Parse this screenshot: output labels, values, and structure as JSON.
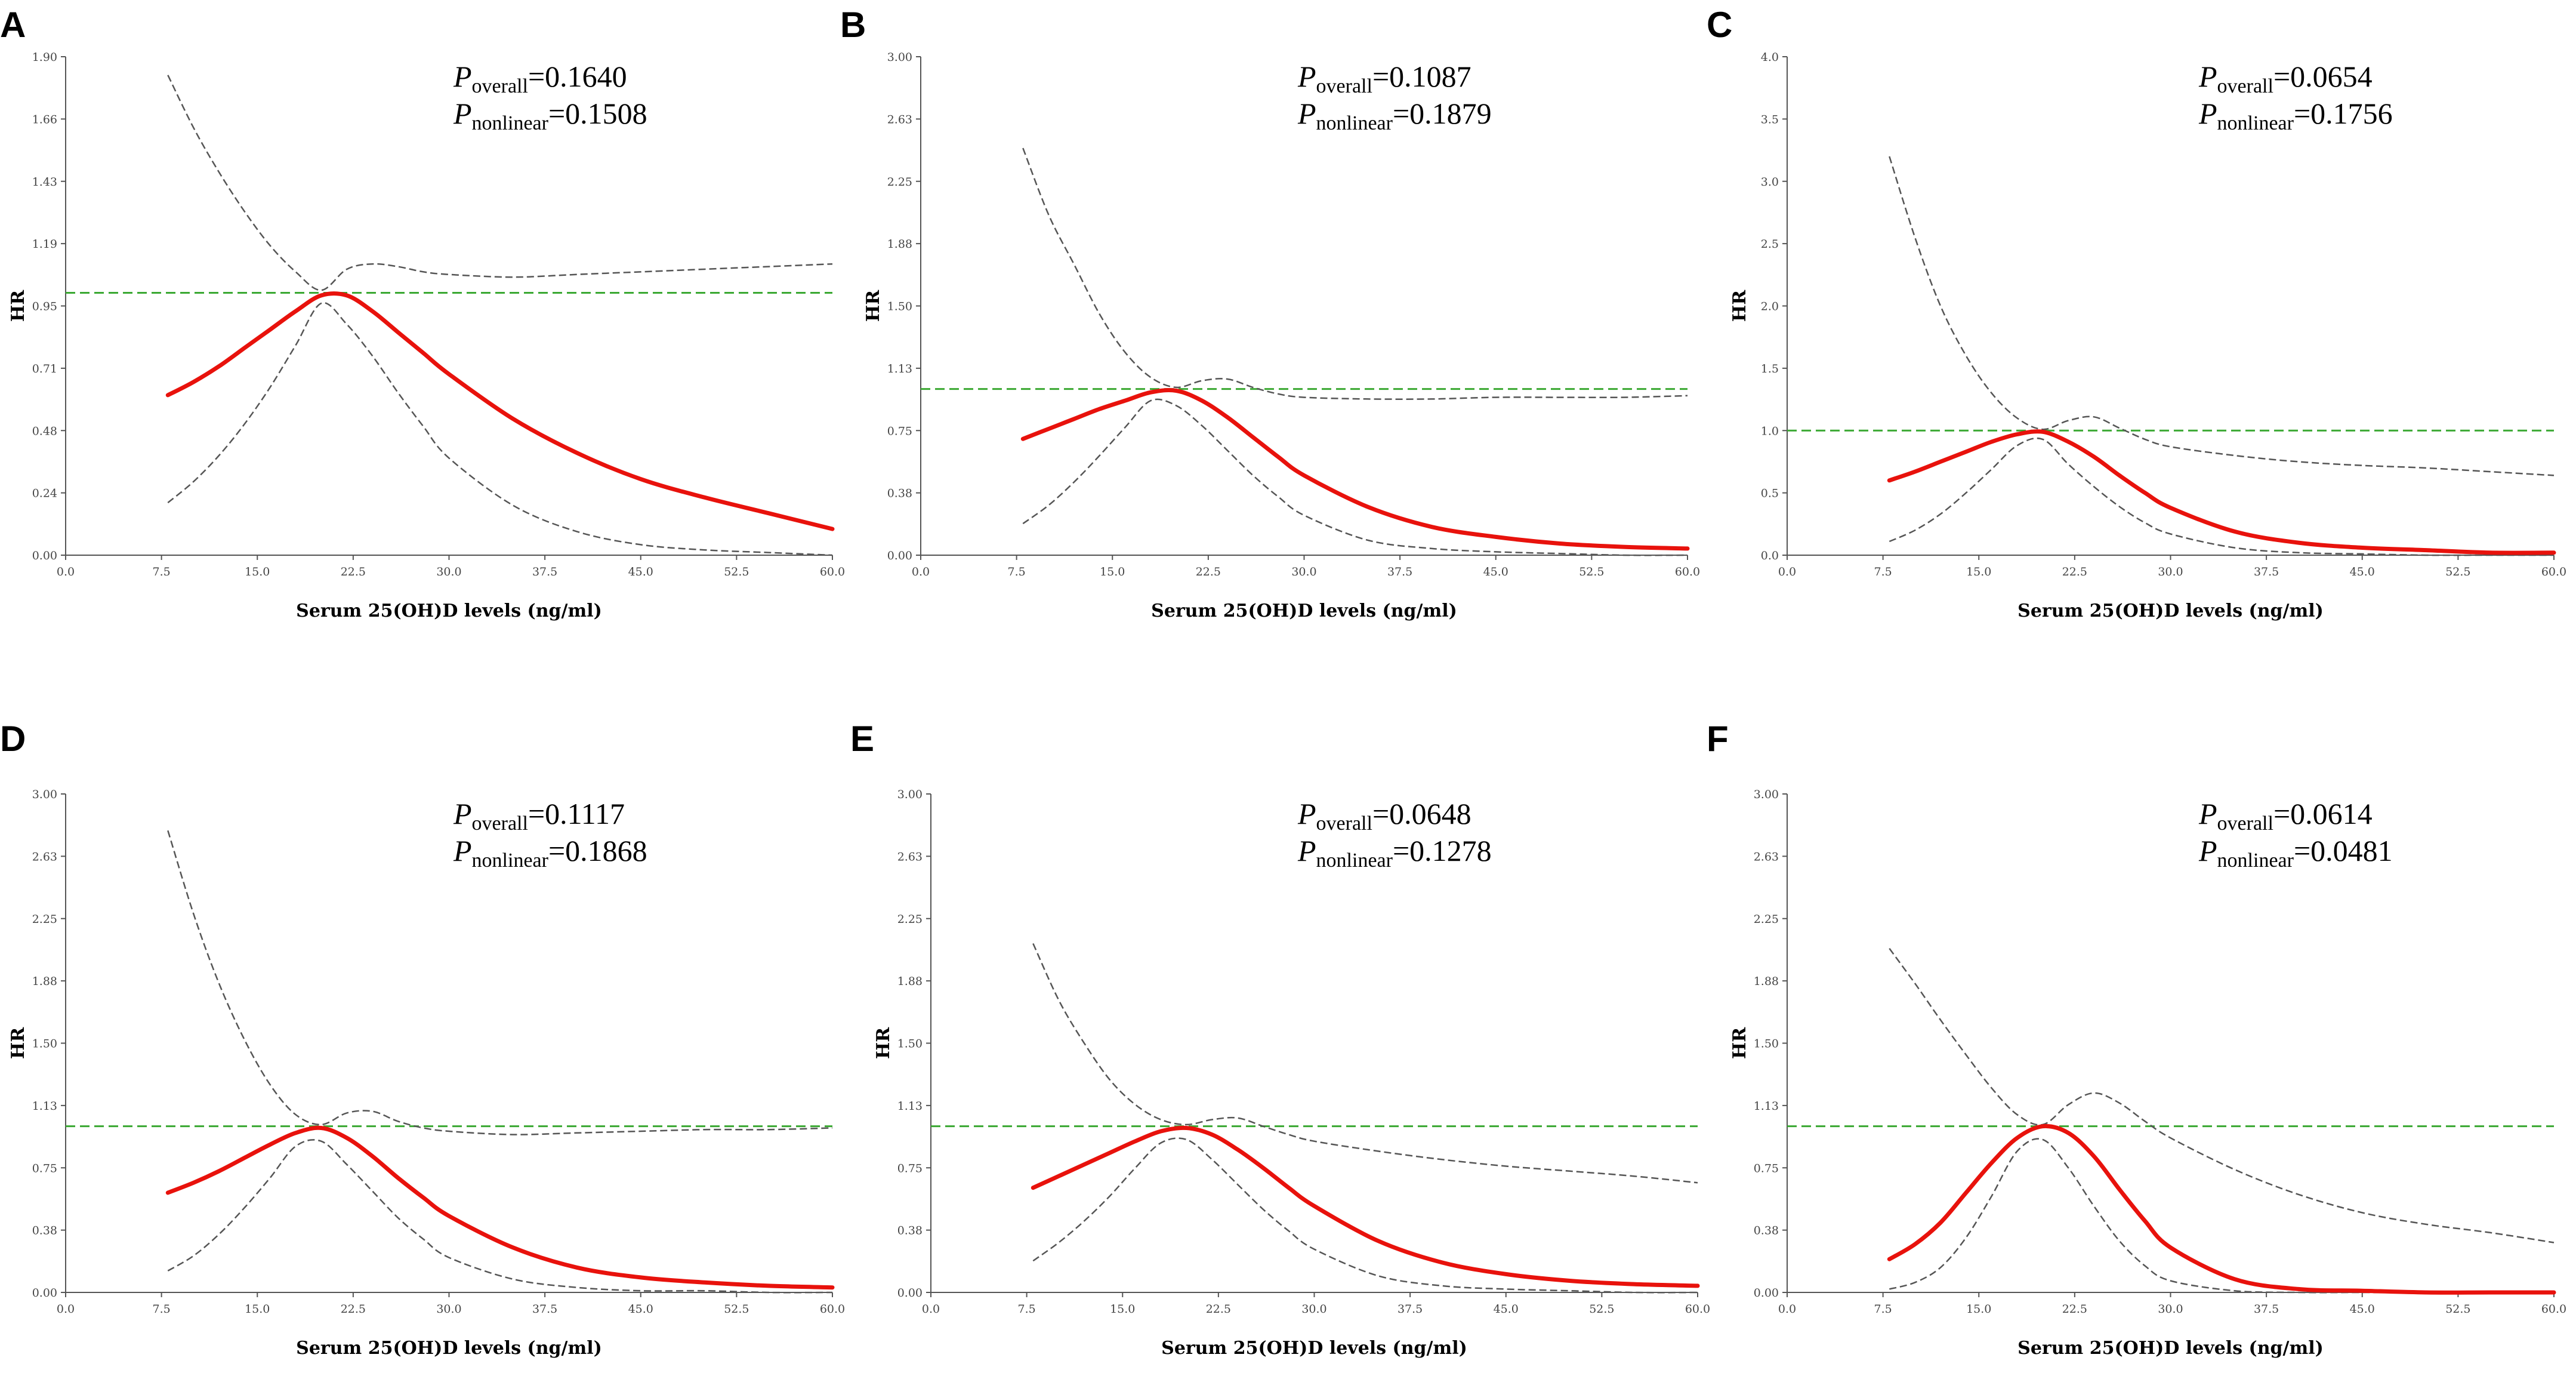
{
  "chart_data": [
    {
      "panel": "A",
      "type": "line",
      "xlabel": "Serum 25(OH)D levels (ng/ml)",
      "ylabel": "HR",
      "xlim": [
        0,
        60
      ],
      "ylim": [
        0,
        1.9
      ],
      "xticks": [
        "0.0",
        "7.5",
        "15.0",
        "22.5",
        "30.0",
        "37.5",
        "45.0",
        "52.5",
        "60.0"
      ],
      "yticks": [
        "0.00",
        "0.24",
        "0.48",
        "0.71",
        "0.95",
        "1.19",
        "1.43",
        "1.66",
        "1.90"
      ],
      "p_overall": "=0.1640",
      "p_nonlinear": "=0.1508",
      "reference": 1.0,
      "x": [
        8,
        10,
        12,
        14,
        16,
        18,
        20,
        22,
        24,
        26,
        28,
        30,
        35,
        40,
        45,
        50,
        55,
        60
      ],
      "series": [
        {
          "name": "HR",
          "values": [
            0.61,
            0.66,
            0.72,
            0.79,
            0.86,
            0.93,
            0.99,
            0.99,
            0.93,
            0.85,
            0.77,
            0.69,
            0.52,
            0.39,
            0.29,
            0.22,
            0.16,
            0.1
          ]
        },
        {
          "name": "Lower 95% CI",
          "values": [
            0.2,
            0.28,
            0.38,
            0.5,
            0.64,
            0.8,
            0.96,
            0.88,
            0.76,
            0.62,
            0.49,
            0.37,
            0.19,
            0.09,
            0.04,
            0.02,
            0.01,
            0.0
          ]
        },
        {
          "name": "Upper 95% CI",
          "values": [
            1.83,
            1.63,
            1.46,
            1.31,
            1.18,
            1.08,
            1.01,
            1.09,
            1.11,
            1.1,
            1.08,
            1.07,
            1.06,
            1.07,
            1.08,
            1.09,
            1.1,
            1.11
          ]
        }
      ]
    },
    {
      "panel": "B",
      "type": "line",
      "xlabel": "Serum 25(OH)D levels (ng/ml)",
      "ylabel": "HR",
      "xlim": [
        0,
        60
      ],
      "ylim": [
        0,
        3.0
      ],
      "xticks": [
        "0.0",
        "7.5",
        "15.0",
        "22.5",
        "30.0",
        "37.5",
        "45.0",
        "52.5",
        "60.0"
      ],
      "yticks": [
        "0.00",
        "0.38",
        "0.75",
        "1.13",
        "1.50",
        "1.88",
        "2.25",
        "2.63",
        "3.00"
      ],
      "p_overall": "=0.1087",
      "p_nonlinear": "=0.1879",
      "reference": 1.0,
      "x": [
        8,
        10,
        12,
        14,
        16,
        18,
        20,
        22,
        24,
        26,
        28,
        30,
        35,
        40,
        45,
        50,
        55,
        60
      ],
      "series": [
        {
          "name": "HR",
          "values": [
            0.7,
            0.76,
            0.82,
            0.88,
            0.93,
            0.98,
            0.99,
            0.93,
            0.83,
            0.71,
            0.59,
            0.48,
            0.29,
            0.17,
            0.11,
            0.07,
            0.05,
            0.04
          ]
        },
        {
          "name": "Lower 95% CI",
          "values": [
            0.19,
            0.3,
            0.44,
            0.6,
            0.77,
            0.93,
            0.9,
            0.78,
            0.63,
            0.48,
            0.35,
            0.24,
            0.09,
            0.04,
            0.02,
            0.01,
            0.0,
            0.0
          ]
        },
        {
          "name": "Upper 95% CI",
          "values": [
            2.45,
            2.05,
            1.75,
            1.45,
            1.22,
            1.07,
            1.01,
            1.05,
            1.06,
            1.01,
            0.97,
            0.95,
            0.94,
            0.94,
            0.95,
            0.95,
            0.95,
            0.96
          ]
        }
      ]
    },
    {
      "panel": "C",
      "type": "line",
      "xlabel": "Serum 25(OH)D levels (ng/ml)",
      "ylabel": "HR",
      "xlim": [
        0,
        60
      ],
      "ylim": [
        0,
        4.0
      ],
      "xticks": [
        "0.0",
        "7.5",
        "15.0",
        "22.5",
        "30.0",
        "37.5",
        "45.0",
        "52.5",
        "60.0"
      ],
      "yticks": [
        "0.0",
        "0.5",
        "1.0",
        "1.5",
        "2.0",
        "2.5",
        "3.0",
        "3.5",
        "4.0"
      ],
      "p_overall": "=0.0654",
      "p_nonlinear": "=0.1756",
      "reference": 1.0,
      "x": [
        8,
        10,
        12,
        14,
        16,
        18,
        20,
        22,
        24,
        26,
        28,
        30,
        35,
        40,
        45,
        50,
        55,
        60
      ],
      "series": [
        {
          "name": "HR",
          "values": [
            0.6,
            0.67,
            0.75,
            0.83,
            0.91,
            0.97,
            0.99,
            0.91,
            0.79,
            0.64,
            0.5,
            0.38,
            0.19,
            0.1,
            0.06,
            0.04,
            0.02,
            0.02
          ]
        },
        {
          "name": "Lower 95% CI",
          "values": [
            0.11,
            0.2,
            0.33,
            0.5,
            0.69,
            0.88,
            0.93,
            0.73,
            0.55,
            0.39,
            0.26,
            0.17,
            0.06,
            0.02,
            0.01,
            0.0,
            0.0,
            0.0
          ]
        },
        {
          "name": "Upper 95% CI",
          "values": [
            3.2,
            2.55,
            2.0,
            1.6,
            1.3,
            1.1,
            1.01,
            1.08,
            1.11,
            1.02,
            0.93,
            0.87,
            0.8,
            0.75,
            0.72,
            0.7,
            0.67,
            0.64
          ]
        }
      ]
    },
    {
      "panel": "D",
      "type": "line",
      "xlabel": "Serum 25(OH)D levels (ng/ml)",
      "ylabel": "HR",
      "xlim": [
        0,
        60
      ],
      "ylim": [
        0,
        3.0
      ],
      "xticks": [
        "0.0",
        "7.5",
        "15.0",
        "22.5",
        "30.0",
        "37.5",
        "45.0",
        "52.5",
        "60.0"
      ],
      "yticks": [
        "0.00",
        "0.38",
        "0.75",
        "1.13",
        "1.50",
        "1.88",
        "2.25",
        "2.63",
        "3.00"
      ],
      "p_overall": "=0.1117",
      "p_nonlinear": "=0.1868",
      "reference": 1.0,
      "x": [
        8,
        10,
        12,
        14,
        16,
        18,
        20,
        22,
        24,
        26,
        28,
        30,
        35,
        40,
        45,
        50,
        55,
        60
      ],
      "series": [
        {
          "name": "HR",
          "values": [
            0.6,
            0.66,
            0.73,
            0.81,
            0.89,
            0.96,
            0.99,
            0.93,
            0.82,
            0.69,
            0.57,
            0.46,
            0.27,
            0.15,
            0.09,
            0.06,
            0.04,
            0.03
          ]
        },
        {
          "name": "Lower 95% CI",
          "values": [
            0.13,
            0.22,
            0.35,
            0.51,
            0.69,
            0.88,
            0.91,
            0.77,
            0.61,
            0.45,
            0.32,
            0.21,
            0.08,
            0.03,
            0.01,
            0.01,
            0.0,
            0.0
          ]
        },
        {
          "name": "Upper 95% CI",
          "values": [
            2.78,
            2.28,
            1.86,
            1.52,
            1.25,
            1.07,
            1.01,
            1.08,
            1.09,
            1.03,
            0.99,
            0.97,
            0.95,
            0.96,
            0.97,
            0.98,
            0.98,
            0.99
          ]
        }
      ]
    },
    {
      "panel": "E",
      "type": "line",
      "xlabel": "Serum 25(OH)D levels (ng/ml)",
      "ylabel": "HR",
      "xlim": [
        0,
        60
      ],
      "ylim": [
        0,
        3.0
      ],
      "xticks": [
        "0.0",
        "7.5",
        "15.0",
        "22.5",
        "30.0",
        "37.5",
        "45.0",
        "52.5",
        "60.0"
      ],
      "yticks": [
        "0.00",
        "0.38",
        "0.75",
        "1.13",
        "1.50",
        "1.88",
        "2.25",
        "2.63",
        "3.00"
      ],
      "p_overall": "=0.0648",
      "p_nonlinear": "=0.1278",
      "reference": 1.0,
      "x": [
        8,
        10,
        12,
        14,
        16,
        18,
        20,
        22,
        24,
        26,
        28,
        30,
        35,
        40,
        45,
        50,
        55,
        60
      ],
      "series": [
        {
          "name": "HR",
          "values": [
            0.63,
            0.7,
            0.77,
            0.84,
            0.91,
            0.97,
            0.99,
            0.95,
            0.86,
            0.75,
            0.63,
            0.52,
            0.31,
            0.18,
            0.11,
            0.07,
            0.05,
            0.04
          ]
        },
        {
          "name": "Lower 95% CI",
          "values": [
            0.19,
            0.3,
            0.43,
            0.58,
            0.75,
            0.9,
            0.92,
            0.8,
            0.65,
            0.5,
            0.37,
            0.26,
            0.1,
            0.04,
            0.02,
            0.01,
            0.0,
            0.0
          ]
        },
        {
          "name": "Upper 95% CI",
          "values": [
            2.1,
            1.76,
            1.5,
            1.28,
            1.13,
            1.04,
            1.01,
            1.04,
            1.05,
            1.0,
            0.95,
            0.91,
            0.85,
            0.8,
            0.76,
            0.73,
            0.7,
            0.66
          ]
        }
      ]
    },
    {
      "panel": "F",
      "type": "line",
      "xlabel": "Serum 25(OH)D levels (ng/ml)",
      "ylabel": "HR",
      "xlim": [
        0,
        60
      ],
      "ylim": [
        0,
        3.0
      ],
      "xticks": [
        "0.0",
        "7.5",
        "15.0",
        "22.5",
        "30.0",
        "37.5",
        "45.0",
        "52.5",
        "60.0"
      ],
      "yticks": [
        "0.00",
        "0.38",
        "0.75",
        "1.13",
        "1.50",
        "1.88",
        "2.25",
        "2.63",
        "3.00"
      ],
      "p_overall": "=0.0614",
      "p_nonlinear": "=0.0481",
      "reference": 1.0,
      "x": [
        8,
        10,
        12,
        14,
        16,
        18,
        20,
        22,
        24,
        26,
        28,
        30,
        35,
        40,
        45,
        50,
        55,
        60
      ],
      "series": [
        {
          "name": "HR",
          "values": [
            0.2,
            0.29,
            0.42,
            0.6,
            0.78,
            0.93,
            1.0,
            0.96,
            0.82,
            0.62,
            0.43,
            0.27,
            0.08,
            0.02,
            0.01,
            0.0,
            0.0,
            0.0
          ]
        },
        {
          "name": "Lower 95% CI",
          "values": [
            0.02,
            0.06,
            0.15,
            0.33,
            0.58,
            0.85,
            0.92,
            0.75,
            0.52,
            0.31,
            0.16,
            0.07,
            0.01,
            0.0,
            0.0,
            0.0,
            0.0,
            0.0
          ]
        },
        {
          "name": "Upper 95% CI",
          "values": [
            2.07,
            1.86,
            1.64,
            1.43,
            1.23,
            1.07,
            1.01,
            1.13,
            1.2,
            1.14,
            1.03,
            0.93,
            0.74,
            0.59,
            0.48,
            0.41,
            0.36,
            0.3
          ]
        }
      ]
    }
  ]
}
